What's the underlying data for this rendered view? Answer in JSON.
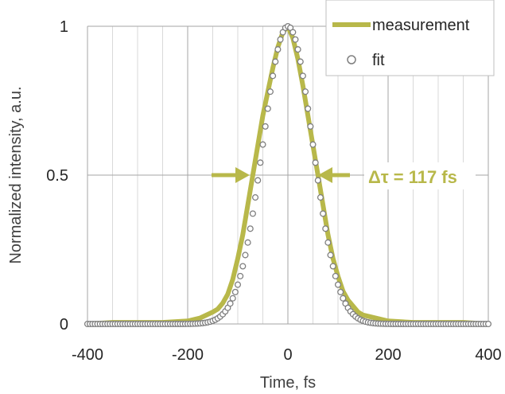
{
  "chart_data": {
    "type": "scatter",
    "xlabel": "Time, fs",
    "ylabel": "Normalized intensity, a.u.",
    "xlim": [
      -400,
      400
    ],
    "ylim": [
      0,
      1
    ],
    "x_ticks": [
      "-400",
      "-200",
      "0",
      "200",
      "400"
    ],
    "y_ticks": [
      "0",
      "0.5",
      "1"
    ],
    "grid": "vertical minor every 50 fs; horizontal at 0, 0.5, 1",
    "legend_position": "top-right",
    "series": [
      {
        "name": "measurement",
        "style": "thick line",
        "color": "#b8b84a",
        "x": [
          -400,
          -350,
          -300,
          -250,
          -200,
          -175,
          -150,
          -140,
          -130,
          -120,
          -110,
          -100,
          -90,
          -80,
          -70,
          -60,
          -50,
          -40,
          -30,
          -20,
          -10,
          0,
          10,
          20,
          30,
          40,
          50,
          60,
          70,
          80,
          90,
          100,
          110,
          120,
          130,
          140,
          150,
          175,
          200,
          250,
          300,
          350,
          400
        ],
        "y": [
          0.0,
          0.005,
          0.005,
          0.005,
          0.01,
          0.02,
          0.04,
          0.05,
          0.07,
          0.1,
          0.15,
          0.22,
          0.3,
          0.4,
          0.5,
          0.6,
          0.7,
          0.78,
          0.86,
          0.93,
          0.98,
          1.0,
          0.96,
          0.89,
          0.8,
          0.7,
          0.6,
          0.5,
          0.4,
          0.3,
          0.22,
          0.16,
          0.11,
          0.08,
          0.06,
          0.04,
          0.03,
          0.02,
          0.01,
          0.005,
          0.005,
          0.005,
          0.0
        ]
      },
      {
        "name": "fit",
        "style": "open circles",
        "color": "#7f7f7f",
        "function": "gaussian",
        "center": 0,
        "fwhm": 117
      }
    ],
    "annotations": [
      {
        "text": "Δτ = 117 fs",
        "color": "#b8b84a",
        "at_y": 0.5
      }
    ]
  }
}
